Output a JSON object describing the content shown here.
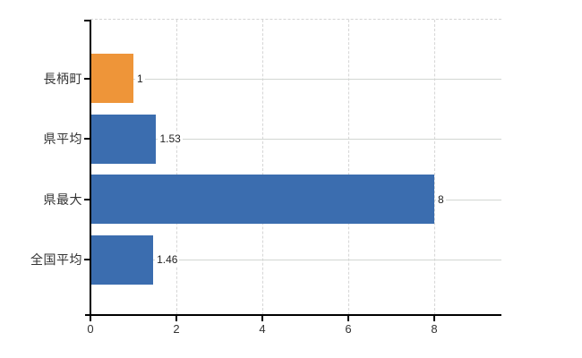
{
  "chart_data": {
    "type": "bar",
    "orientation": "horizontal",
    "title": "",
    "xlabel": "",
    "ylabel": "",
    "categories": [
      "長柄町",
      "県平均",
      "県最大",
      "全国平均"
    ],
    "values": [
      1,
      1.53,
      8,
      1.46
    ],
    "value_labels": [
      "1",
      "1.53",
      "8",
      "1.46"
    ],
    "bar_colors": [
      "#ee9539",
      "#3b6daf",
      "#3b6daf",
      "#3b6daf"
    ],
    "x_ticks": [
      0,
      2,
      4,
      6,
      8
    ],
    "x_tick_labels": [
      "0",
      "2",
      "4",
      "6",
      "8"
    ],
    "xlim": [
      0,
      9.5625
    ],
    "grid": true,
    "legend": false
  },
  "colors": {
    "background": "#ffffff",
    "axis": "#000000",
    "grid": "#d4d4d4",
    "text": "#333333",
    "accent_orange": "#ee9539",
    "accent_blue": "#3b6daf"
  }
}
